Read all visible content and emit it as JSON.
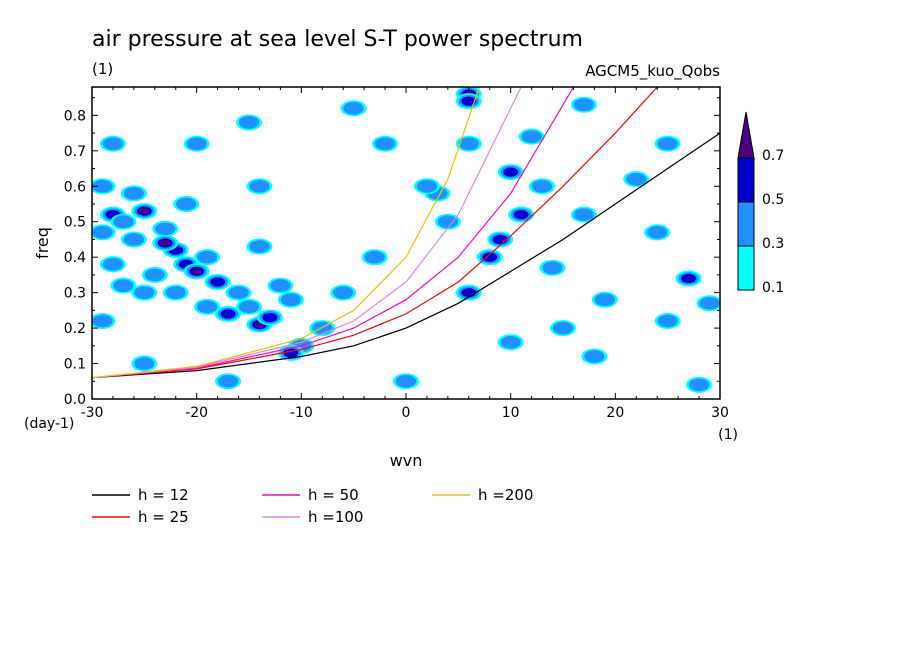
{
  "chart_data": {
    "type": "heatmap",
    "title": "air pressure at sea level S-T power spectrum",
    "subtitle_left": "(1)",
    "subtitle_right": "AGCM5_kuo_Qobs",
    "xlabel": "wvn",
    "ylabel": "freq",
    "x_unit_label": "(1)",
    "y_unit_label": "(day-1)",
    "xlim": [
      -30,
      30
    ],
    "ylim": [
      0.0,
      0.88
    ],
    "xticks": [
      "-30",
      "-20",
      "-10",
      "0",
      "10",
      "20",
      "30"
    ],
    "xtick_values": [
      -30,
      -20,
      -10,
      0,
      10,
      20,
      30
    ],
    "yticks": [
      "0.0",
      "0.1",
      "0.2",
      "0.3",
      "0.4",
      "0.5",
      "0.6",
      "0.7",
      "0.8"
    ],
    "ytick_values": [
      0.0,
      0.1,
      0.2,
      0.3,
      0.4,
      0.5,
      0.6,
      0.7,
      0.8
    ],
    "colorbar": {
      "levels": [
        "0.1",
        "0.3",
        "0.5",
        "0.7"
      ],
      "level_values": [
        0.1,
        0.3,
        0.5,
        0.7
      ],
      "colors": [
        "#00ffff",
        "#1e90ff",
        "#0000cd",
        "#4b0082"
      ]
    },
    "power_patches": [
      {
        "x": -28,
        "y": 0.52,
        "level": 2
      },
      {
        "x": -27,
        "y": 0.5,
        "level": 1
      },
      {
        "x": -29,
        "y": 0.47,
        "level": 1
      },
      {
        "x": -25,
        "y": 0.53,
        "level": 3
      },
      {
        "x": -26,
        "y": 0.45,
        "level": 1
      },
      {
        "x": -23,
        "y": 0.48,
        "level": 1
      },
      {
        "x": -22,
        "y": 0.42,
        "level": 2
      },
      {
        "x": -21,
        "y": 0.38,
        "level": 2
      },
      {
        "x": -20,
        "y": 0.36,
        "level": 3
      },
      {
        "x": -23,
        "y": 0.44,
        "level": 3
      },
      {
        "x": -19,
        "y": 0.4,
        "level": 1
      },
      {
        "x": -18,
        "y": 0.33,
        "level": 2
      },
      {
        "x": -16,
        "y": 0.3,
        "level": 1
      },
      {
        "x": -17,
        "y": 0.24,
        "level": 2
      },
      {
        "x": -14,
        "y": 0.21,
        "level": 3
      },
      {
        "x": -13,
        "y": 0.23,
        "level": 2
      },
      {
        "x": -15,
        "y": 0.26,
        "level": 1
      },
      {
        "x": -28,
        "y": 0.38,
        "level": 1
      },
      {
        "x": -27,
        "y": 0.32,
        "level": 1
      },
      {
        "x": -24,
        "y": 0.35,
        "level": 1
      },
      {
        "x": -25,
        "y": 0.3,
        "level": 1
      },
      {
        "x": -22,
        "y": 0.3,
        "level": 1
      },
      {
        "x": -26,
        "y": 0.58,
        "level": 1
      },
      {
        "x": -29,
        "y": 0.6,
        "level": 1
      },
      {
        "x": -21,
        "y": 0.55,
        "level": 1
      },
      {
        "x": -19,
        "y": 0.26,
        "level": 1
      },
      {
        "x": -12,
        "y": 0.32,
        "level": 1
      },
      {
        "x": -11,
        "y": 0.28,
        "level": 1
      },
      {
        "x": -10,
        "y": 0.15,
        "level": 1
      },
      {
        "x": -11,
        "y": 0.13,
        "level": 2
      },
      {
        "x": -8,
        "y": 0.2,
        "level": 1
      },
      {
        "x": -14,
        "y": 0.43,
        "level": 1
      },
      {
        "x": -14,
        "y": 0.6,
        "level": 1
      },
      {
        "x": 6,
        "y": 0.86,
        "level": 3
      },
      {
        "x": 6,
        "y": 0.84,
        "level": 2
      },
      {
        "x": 10,
        "y": 0.64,
        "level": 2
      },
      {
        "x": 11,
        "y": 0.52,
        "level": 2
      },
      {
        "x": 9,
        "y": 0.45,
        "level": 2
      },
      {
        "x": 8,
        "y": 0.4,
        "level": 2
      },
      {
        "x": 6,
        "y": 0.3,
        "level": 2
      },
      {
        "x": 4,
        "y": 0.5,
        "level": 1
      },
      {
        "x": 3,
        "y": 0.58,
        "level": 1
      },
      {
        "x": 2,
        "y": 0.6,
        "level": 1
      },
      {
        "x": 13,
        "y": 0.6,
        "level": 1
      },
      {
        "x": 14,
        "y": 0.37,
        "level": 1
      },
      {
        "x": 22,
        "y": 0.62,
        "level": 1
      },
      {
        "x": 27,
        "y": 0.34,
        "level": 2
      },
      {
        "x": 29,
        "y": 0.27,
        "level": 1
      },
      {
        "x": 25,
        "y": 0.22,
        "level": 1
      },
      {
        "x": 17,
        "y": 0.52,
        "level": 1
      },
      {
        "x": 28,
        "y": 0.04,
        "level": 1
      },
      {
        "x": 0,
        "y": 0.05,
        "level": 1
      },
      {
        "x": -15,
        "y": 0.78,
        "level": 1
      },
      {
        "x": -5,
        "y": 0.82,
        "level": 1
      },
      {
        "x": 17,
        "y": 0.83,
        "level": 1
      },
      {
        "x": 25,
        "y": 0.72,
        "level": 1
      },
      {
        "x": 19,
        "y": 0.28,
        "level": 1
      },
      {
        "x": -6,
        "y": 0.3,
        "level": 1
      },
      {
        "x": -25,
        "y": 0.1,
        "level": 1
      },
      {
        "x": -17,
        "y": 0.05,
        "level": 1
      },
      {
        "x": 10,
        "y": 0.16,
        "level": 1
      },
      {
        "x": 18,
        "y": 0.12,
        "level": 1
      },
      {
        "x": -2,
        "y": 0.72,
        "level": 1
      },
      {
        "x": 12,
        "y": 0.74,
        "level": 1
      },
      {
        "x": -28,
        "y": 0.72,
        "level": 1
      },
      {
        "x": -20,
        "y": 0.72,
        "level": 1
      },
      {
        "x": 24,
        "y": 0.47,
        "level": 1
      },
      {
        "x": 6,
        "y": 0.72,
        "level": 1
      },
      {
        "x": -3,
        "y": 0.4,
        "level": 1
      },
      {
        "x": 15,
        "y": 0.2,
        "level": 1
      },
      {
        "x": -29,
        "y": 0.22,
        "level": 1
      }
    ],
    "series": [
      {
        "name": "h = 12",
        "h": 12,
        "color": "#000000",
        "x": [
          -30,
          -20,
          -10,
          -5,
          0,
          5,
          10,
          15,
          20,
          25,
          30
        ],
        "y": [
          0.06,
          0.08,
          0.12,
          0.15,
          0.2,
          0.27,
          0.36,
          0.45,
          0.55,
          0.65,
          0.75
        ]
      },
      {
        "name": "h = 25",
        "h": 25,
        "color": "#ff0000",
        "x": [
          -30,
          -20,
          -10,
          -5,
          0,
          5,
          10,
          15,
          20,
          24
        ],
        "y": [
          0.06,
          0.085,
          0.14,
          0.18,
          0.24,
          0.33,
          0.46,
          0.6,
          0.75,
          0.88
        ]
      },
      {
        "name": "h = 50",
        "h": 50,
        "color": "#ff00cc",
        "x": [
          -30,
          -20,
          -10,
          -5,
          0,
          5,
          10,
          16
        ],
        "y": [
          0.06,
          0.087,
          0.15,
          0.2,
          0.28,
          0.4,
          0.58,
          0.88
        ]
      },
      {
        "name": "h =100",
        "h": 100,
        "color": "#dd88dd",
        "x": [
          -30,
          -20,
          -10,
          -5,
          0,
          5,
          11
        ],
        "y": [
          0.06,
          0.09,
          0.16,
          0.22,
          0.33,
          0.52,
          0.88
        ]
      },
      {
        "name": "h =200",
        "h": 200,
        "color": "#f0c000",
        "x": [
          -30,
          -20,
          -10,
          -5,
          0,
          4,
          7
        ],
        "y": [
          0.06,
          0.092,
          0.17,
          0.25,
          0.4,
          0.62,
          0.88
        ]
      }
    ],
    "legend_placement": "bottom-left",
    "grid": false
  }
}
